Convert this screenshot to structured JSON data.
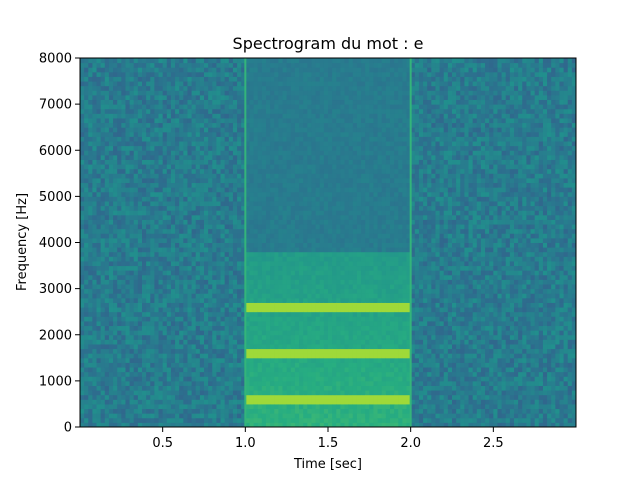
{
  "chart_data": {
    "type": "heatmap",
    "title": "Spectrogram du mot : e",
    "xlabel": "Time [sec]",
    "ylabel": "Frequency [Hz]",
    "xlim": [
      0,
      3.0
    ],
    "ylim": [
      0,
      8000
    ],
    "x_ticks": [
      0.5,
      1.0,
      1.5,
      2.0,
      2.5
    ],
    "x_tick_labels": [
      "0.5",
      "1.0",
      "1.5",
      "2.0",
      "2.5"
    ],
    "y_ticks": [
      0,
      1000,
      2000,
      3000,
      4000,
      5000,
      6000,
      7000,
      8000
    ],
    "y_tick_labels": [
      "0",
      "1000",
      "2000",
      "3000",
      "4000",
      "5000",
      "6000",
      "7000",
      "8000"
    ],
    "colormap": "viridis",
    "grid": false,
    "background_level": 0.42,
    "signal": {
      "start_sec": 1.0,
      "end_sec": 2.0,
      "formants_hz": [
        600,
        1600,
        2600
      ],
      "formant_level": 1.0,
      "energy_top_hz": 3800
    },
    "onset_lines_sec": [
      1.0,
      2.0
    ]
  }
}
